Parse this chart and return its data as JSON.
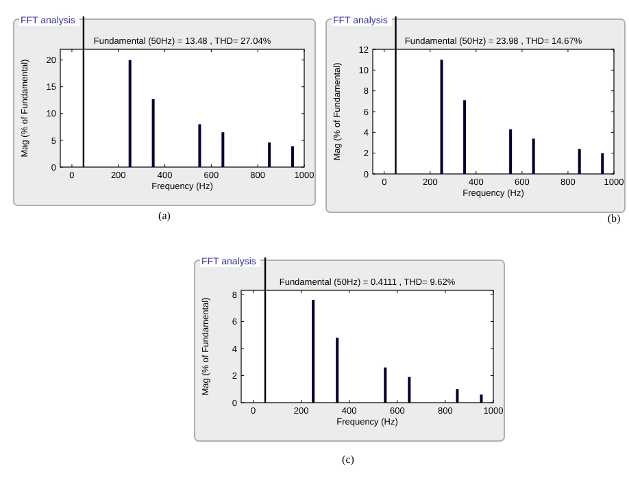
{
  "chart_data": [
    {
      "type": "bar",
      "title": "FFT analysis",
      "subtitle": "Fundamental (50Hz) = 13.48 , THD= 27.04%",
      "xlabel": "Frequency (Hz)",
      "ylabel": "Mag (% of Fundamental)",
      "annotations": [
        "(a)"
      ],
      "x": [
        250,
        350,
        550,
        650,
        850,
        950
      ],
      "values": [
        20,
        12.7,
        8,
        6.5,
        4.6,
        3.9
      ],
      "color": "#000033",
      "xlim": [
        -50,
        1000
      ],
      "xticks": [
        0,
        200,
        400,
        600,
        800,
        1000
      ],
      "ylim": [
        0,
        22
      ],
      "yticks": [
        0,
        5,
        10,
        15,
        20
      ],
      "ref_lines": [
        {
          "axis": "x",
          "value": 50,
          "color": "#000000"
        }
      ]
    },
    {
      "type": "bar",
      "title": "FFT analysis",
      "subtitle": "Fundamental (50Hz) = 23.98 , THD= 14.67%",
      "xlabel": "Frequency (Hz)",
      "ylabel": "Mag (% of Fundamental)",
      "annotations": [
        "(b)"
      ],
      "x": [
        250,
        350,
        550,
        650,
        850,
        950
      ],
      "values": [
        11,
        7.1,
        4.3,
        3.4,
        2.4,
        2
      ],
      "color": "#000033",
      "xlim": [
        -50,
        1000
      ],
      "xticks": [
        0,
        200,
        400,
        600,
        800,
        1000
      ],
      "ylim": [
        0,
        12
      ],
      "yticks": [
        0,
        2,
        4,
        6,
        8,
        10,
        12
      ],
      "ref_lines": [
        {
          "axis": "x",
          "value": 50,
          "color": "#000000"
        }
      ]
    },
    {
      "type": "bar",
      "title": "FFT analysis",
      "subtitle": "Fundamental (50Hz) = 0.4111 , THD= 9.62%",
      "xlabel": "Frequency (Hz)",
      "ylabel": "Mag (% of Fundamental)",
      "annotations": [
        "(c)"
      ],
      "x": [
        250,
        350,
        550,
        650,
        850,
        950
      ],
      "values": [
        7.6,
        4.8,
        2.6,
        1.9,
        1,
        0.6
      ],
      "color": "#000033",
      "xlim": [
        -50,
        1000
      ],
      "xticks": [
        0,
        200,
        400,
        600,
        800,
        1000
      ],
      "ylim": [
        0,
        8.3
      ],
      "yticks": [
        0,
        2,
        4,
        6,
        8
      ],
      "ref_lines": [
        {
          "axis": "x",
          "value": 50,
          "color": "#000000"
        }
      ]
    }
  ]
}
